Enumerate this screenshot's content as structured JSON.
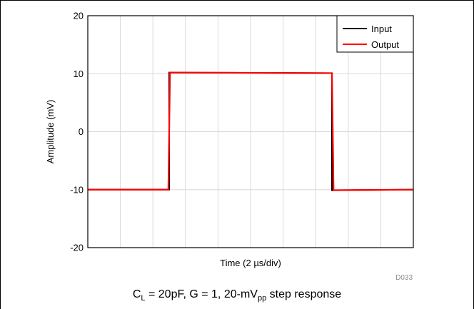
{
  "chart_data": {
    "type": "line",
    "title": "",
    "xlabel": "Time (2 µs/div)",
    "ylabel": "Amplitude (mV)",
    "x_divisions": 10,
    "xlim": [
      0,
      20
    ],
    "ylim": [
      -20,
      20
    ],
    "yticks": [
      -20,
      -10,
      0,
      10,
      20
    ],
    "ytick_labels": [
      "-20",
      "-10",
      "0",
      "10",
      "20"
    ],
    "grid": true,
    "legend": "top-right",
    "series": [
      {
        "name": "Input",
        "color": "#000000",
        "x": [
          0,
          5.0,
          5.0,
          15.0,
          15.0,
          20
        ],
        "y": [
          -10,
          -10,
          10.2,
          10.1,
          -10.1,
          -10
        ]
      },
      {
        "name": "Output",
        "color": "#ff0000",
        "x": [
          0,
          4.95,
          5.05,
          15.0,
          15.1,
          20
        ],
        "y": [
          -10,
          -10,
          10.2,
          10.1,
          -10.1,
          -10
        ]
      }
    ]
  },
  "figure_id": "D033",
  "caption": {
    "c_main": "C",
    "c_sub": "L",
    "middle": " = 20pF, G = 1, 20-mV",
    "pp_sub": "pp",
    "tail": " step response"
  }
}
